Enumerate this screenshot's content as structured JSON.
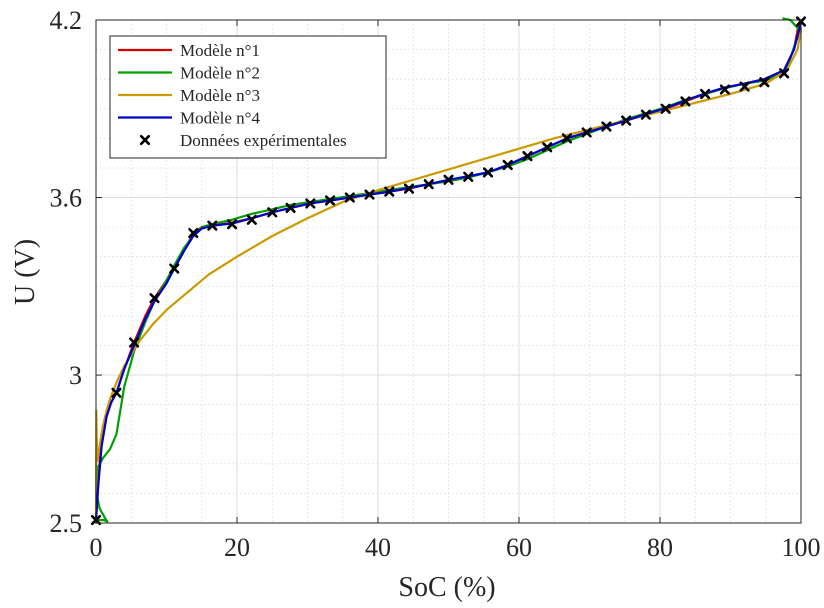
{
  "chart_data": {
    "type": "line",
    "xlabel": "SoC (%)",
    "ylabel": "U (V)",
    "xlim": [
      0,
      100
    ],
    "ylim": [
      2.5,
      4.2
    ],
    "xticks": [
      {
        "value": 0,
        "label": "0"
      },
      {
        "value": 20,
        "label": "20"
      },
      {
        "value": 40,
        "label": "40"
      },
      {
        "value": 60,
        "label": "60"
      },
      {
        "value": 80,
        "label": "80"
      },
      {
        "value": 100,
        "label": "100"
      }
    ],
    "yticks": [
      {
        "value": 2.5,
        "label": "2.5"
      },
      {
        "value": 3,
        "label": "3"
      },
      {
        "value": 3.6,
        "label": "3.6"
      },
      {
        "value": 4.2,
        "label": "4.2"
      }
    ],
    "grid": true,
    "minor_grid": true,
    "legend_position": "top-left",
    "series": [
      {
        "name": "Modèle n°1",
        "color": "#d40000",
        "x": [
          0,
          0.5,
          1,
          2,
          2.9,
          4,
          5.4,
          7,
          8.3,
          10,
          11.1,
          12.5,
          13.8,
          15,
          16.5,
          19.3,
          22.1,
          25,
          27.6,
          30.4,
          33.2,
          36,
          38.8,
          41.6,
          44.4,
          47.2,
          50,
          52.8,
          55.6,
          58.4,
          61.2,
          64,
          66.8,
          69.6,
          72.4,
          75.2,
          78,
          80.8,
          83.6,
          86.4,
          89.2,
          92,
          94.8,
          97.6,
          99,
          99.7
        ],
        "y": [
          2.51,
          2.7,
          2.82,
          2.9,
          2.94,
          3.02,
          3.11,
          3.2,
          3.26,
          3.32,
          3.36,
          3.42,
          3.48,
          3.5,
          3.505,
          3.515,
          3.53,
          3.55,
          3.565,
          3.58,
          3.59,
          3.6,
          3.61,
          3.62,
          3.63,
          3.645,
          3.66,
          3.67,
          3.685,
          3.71,
          3.74,
          3.77,
          3.8,
          3.82,
          3.84,
          3.86,
          3.88,
          3.9,
          3.925,
          3.95,
          3.97,
          3.985,
          4.0,
          4.03,
          4.1,
          4.19
        ]
      },
      {
        "name": "Modèle n°2",
        "color": "#00a000",
        "x": [
          0,
          1.1,
          1.6,
          1.2,
          0.5,
          0.1,
          0.3,
          1,
          2,
          2.9,
          4,
          5.4,
          7,
          8.3,
          10,
          11.1,
          12.5,
          13.8,
          15,
          16.5,
          19.3,
          22.1,
          25,
          27.6,
          30.4,
          33.2,
          36,
          38.8,
          41.6,
          44.4,
          47.2,
          50,
          52.8,
          55.6,
          58.4,
          61.2,
          64,
          66.8,
          69.6,
          72.4,
          75.2,
          78,
          80.8,
          83.6,
          86.4,
          89.2,
          92,
          94.8,
          97.6,
          98.5,
          99.3,
          100,
          98.5,
          97.5
        ],
        "y": [
          2.51,
          2.51,
          2.505,
          2.52,
          2.55,
          2.6,
          2.69,
          2.72,
          2.75,
          2.8,
          2.96,
          3.08,
          3.18,
          3.25,
          3.32,
          3.37,
          3.43,
          3.47,
          3.5,
          3.51,
          3.525,
          3.545,
          3.56,
          3.575,
          3.585,
          3.595,
          3.605,
          3.615,
          3.625,
          3.635,
          3.645,
          3.655,
          3.668,
          3.685,
          3.705,
          3.73,
          3.76,
          3.79,
          3.815,
          3.84,
          3.865,
          3.885,
          3.905,
          3.93,
          3.95,
          3.97,
          3.985,
          3.995,
          4.02,
          4.07,
          4.13,
          4.16,
          4.2,
          4.205
        ]
      },
      {
        "name": "Modèle n°3",
        "color": "#cc9900",
        "x": [
          0,
          0.05,
          0.1,
          0.2,
          0.4,
          0.7,
          1,
          1.5,
          2,
          3,
          4,
          5,
          6,
          8,
          10,
          13,
          16,
          20,
          25,
          30,
          35,
          40,
          45,
          50,
          55,
          60,
          65,
          70,
          75,
          80,
          85,
          90,
          95,
          98,
          99.5,
          100
        ],
        "y": [
          2.5,
          2.88,
          2.79,
          2.71,
          2.74,
          2.79,
          2.83,
          2.88,
          2.92,
          2.98,
          3.03,
          3.07,
          3.11,
          3.17,
          3.22,
          3.28,
          3.34,
          3.4,
          3.47,
          3.53,
          3.585,
          3.625,
          3.66,
          3.695,
          3.73,
          3.765,
          3.8,
          3.83,
          3.86,
          3.89,
          3.92,
          3.95,
          3.985,
          4.03,
          4.1,
          4.17
        ]
      },
      {
        "name": "Modèle n°4",
        "color": "#0000cc",
        "x": [
          0,
          0.3,
          0.8,
          1.5,
          2.2,
          2.9,
          4,
          5.4,
          7,
          8.3,
          10,
          11.1,
          12.5,
          13.8,
          15,
          16.5,
          19.3,
          22.1,
          25,
          27.6,
          30.4,
          33.2,
          36,
          38.8,
          41.6,
          44.4,
          47.2,
          50,
          52.8,
          55.6,
          58.4,
          61.2,
          64,
          66.8,
          69.6,
          72.4,
          75.2,
          78,
          80.8,
          83.6,
          86.4,
          89.2,
          92,
          94.8,
          97.6,
          99,
          100
        ],
        "y": [
          2.51,
          2.62,
          2.76,
          2.86,
          2.91,
          2.94,
          3.02,
          3.1,
          3.19,
          3.25,
          3.31,
          3.36,
          3.42,
          3.47,
          3.495,
          3.505,
          3.512,
          3.53,
          3.55,
          3.565,
          3.58,
          3.59,
          3.6,
          3.61,
          3.62,
          3.632,
          3.645,
          3.66,
          3.672,
          3.685,
          3.71,
          3.74,
          3.77,
          3.8,
          3.82,
          3.84,
          3.86,
          3.882,
          3.902,
          3.928,
          3.952,
          3.972,
          3.985,
          4.0,
          4.03,
          4.1,
          4.19
        ]
      }
    ],
    "experimental": {
      "name": "Données expérimentales",
      "color": "#000000",
      "x": [
        0,
        2.9,
        5.4,
        8.3,
        11.1,
        13.8,
        16.5,
        19.3,
        22.1,
        25,
        27.6,
        30.4,
        33.2,
        36,
        38.8,
        41.6,
        44.4,
        47.2,
        50,
        52.8,
        55.6,
        58.4,
        61.2,
        64,
        66.8,
        69.6,
        72.4,
        75.2,
        78,
        80.8,
        83.6,
        86.4,
        89.2,
        92,
        94.8,
        97.6,
        100
      ],
      "y": [
        2.51,
        2.94,
        3.11,
        3.26,
        3.36,
        3.48,
        3.505,
        3.51,
        3.525,
        3.55,
        3.565,
        3.58,
        3.59,
        3.6,
        3.61,
        3.62,
        3.63,
        3.645,
        3.66,
        3.67,
        3.685,
        3.71,
        3.74,
        3.77,
        3.8,
        3.82,
        3.84,
        3.86,
        3.88,
        3.9,
        3.925,
        3.95,
        3.965,
        3.975,
        3.99,
        4.02,
        4.195
      ]
    }
  }
}
